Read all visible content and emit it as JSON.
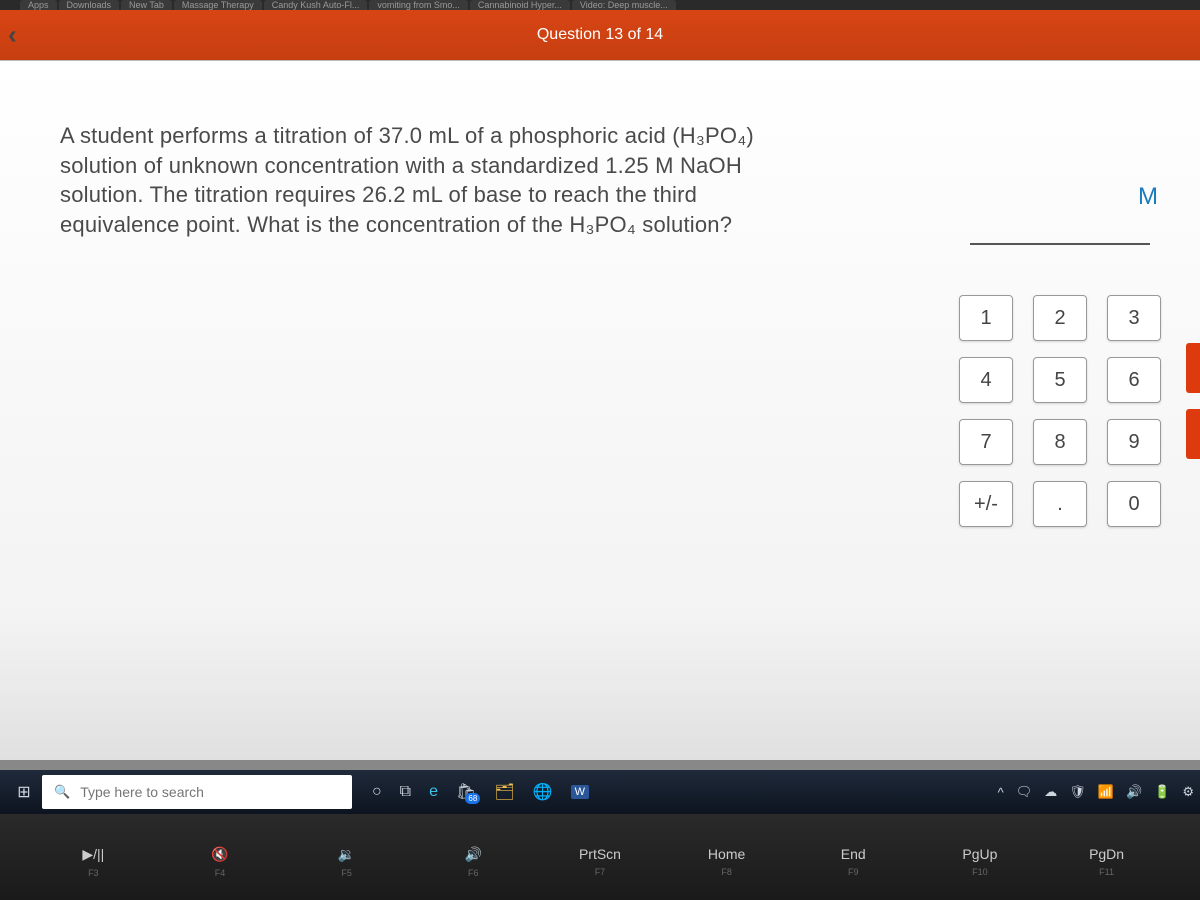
{
  "browser": {
    "tabs": [
      "Apps",
      "Downloads",
      "New Tab",
      "Massage Therapy",
      "Candy Kush Auto-Fl...",
      "vomiting from Smo...",
      "Cannabinoid Hyper...",
      "Video: Deep muscle..."
    ]
  },
  "header": {
    "counter": "Question 13 of 14",
    "bg_color": "#d84515"
  },
  "question": {
    "text": "A student performs a titration of 37.0 mL of a phosphoric acid (H₃PO₄) solution of unknown concentration with a standardized 1.25 M NaOH solution. The titration requires 26.2 mL of base to reach the third equivalence point. What is the concentration of the H₃PO₄ solution?"
  },
  "answer": {
    "unit": "M",
    "value": ""
  },
  "numpad": {
    "keys": [
      "1",
      "2",
      "3",
      "4",
      "5",
      "6",
      "7",
      "8",
      "9",
      "+/-",
      ".",
      "0"
    ]
  },
  "taskbar": {
    "search_placeholder": "Type here to search",
    "badge": "68"
  },
  "keyboard": {
    "keys": [
      {
        "main": "▶/||",
        "sub": "F3"
      },
      {
        "main": "🔇",
        "sub": "F4"
      },
      {
        "main": "🔉",
        "sub": "F5"
      },
      {
        "main": "🔊",
        "sub": "F6"
      },
      {
        "main": "PrtScn",
        "sub": "F7"
      },
      {
        "main": "Home",
        "sub": "F8"
      },
      {
        "main": "End",
        "sub": "F9"
      },
      {
        "main": "PgUp",
        "sub": "F10"
      },
      {
        "main": "PgDn",
        "sub": "F11"
      }
    ]
  },
  "colors": {
    "header": "#d84515",
    "question_text": "#4a4a4a",
    "unit": "#1a7bbd",
    "key_border": "#999999",
    "taskbar": "#1a2332"
  }
}
